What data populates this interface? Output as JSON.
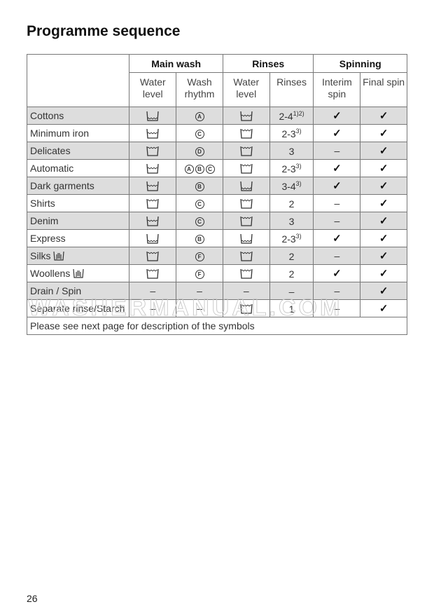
{
  "title": "Programme sequence",
  "headers": {
    "main_wash": "Main wash",
    "rinses": "Rinses",
    "spinning": "Spinning",
    "sub": [
      "Water level",
      "Wash rhythm",
      "Water level",
      "Rinses",
      "Interim spin",
      "Final spin"
    ]
  },
  "rows": [
    {
      "label": "Cottons",
      "mw_level": "low",
      "rhythm": [
        "A"
      ],
      "rinse_level": "medium",
      "rinses": "2-4",
      "note": "1)2)",
      "interim": "check",
      "final": "check"
    },
    {
      "label": "Minimum iron",
      "mw_level": "medium",
      "rhythm": [
        "C"
      ],
      "rinse_level": "high",
      "rinses": "2-3",
      "note": "3)",
      "interim": "check",
      "final": "check"
    },
    {
      "label": "Delicates",
      "mw_level": "high",
      "rhythm": [
        "D"
      ],
      "rinse_level": "high",
      "rinses": "3",
      "note": "",
      "interim": "dash",
      "final": "check"
    },
    {
      "label": "Automatic",
      "mw_level": "medium",
      "rhythm": [
        "A",
        "B",
        "C"
      ],
      "rinse_level": "high",
      "rinses": "2-3",
      "note": "3)",
      "interim": "check",
      "final": "check"
    },
    {
      "label": "Dark garments",
      "mw_level": "medium",
      "rhythm": [
        "B"
      ],
      "rinse_level": "low",
      "rinses": "3-4",
      "note": "3)",
      "interim": "check",
      "final": "check"
    },
    {
      "label": "Shirts",
      "mw_level": "high",
      "rhythm": [
        "C"
      ],
      "rinse_level": "high",
      "rinses": "2",
      "note": "",
      "interim": "dash",
      "final": "check"
    },
    {
      "label": "Denim",
      "mw_level": "medium",
      "rhythm": [
        "C"
      ],
      "rinse_level": "high",
      "rinses": "3",
      "note": "",
      "interim": "dash",
      "final": "check"
    },
    {
      "label": "Express",
      "mw_level": "low",
      "rhythm": [
        "B"
      ],
      "rinse_level": "low",
      "rinses": "2-3",
      "note": "3)",
      "interim": "check",
      "final": "check"
    },
    {
      "label": "Silks",
      "handwash_icon": true,
      "mw_level": "high",
      "rhythm": [
        "F"
      ],
      "rinse_level": "high",
      "rinses": "2",
      "note": "",
      "interim": "dash",
      "final": "check"
    },
    {
      "label": "Woollens",
      "handwash_icon": true,
      "mw_level": "high",
      "rhythm": [
        "F"
      ],
      "rinse_level": "high",
      "rinses": "2",
      "note": "",
      "interim": "check",
      "final": "check"
    },
    {
      "label": "Drain / Spin",
      "mw_level": "dash",
      "rhythm": [],
      "rinse_level": "dash",
      "rinses": "–",
      "note": "",
      "interim": "dash",
      "final": "check"
    },
    {
      "label": "Separate rinse/Starch",
      "mw_level": "dash",
      "rhythm": [],
      "rinse_level": "high",
      "rinses": "1",
      "note": "",
      "interim": "dash",
      "final": "check"
    }
  ],
  "footer": "Please see next page for description of the symbols",
  "page_number": "26",
  "watermark": "WASHERMANUAL.COM"
}
